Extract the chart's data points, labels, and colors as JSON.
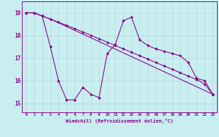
{
  "xlabel": "Windchill (Refroidissement éolien,°C)",
  "bg_color": "#c8eef0",
  "grid_color": "#b0d8dc",
  "line_color": "#880088",
  "xlim": [
    -0.5,
    23.5
  ],
  "ylim": [
    14.6,
    19.5
  ],
  "xticks": [
    0,
    1,
    2,
    3,
    4,
    5,
    6,
    7,
    8,
    9,
    10,
    11,
    12,
    13,
    14,
    15,
    16,
    17,
    18,
    19,
    20,
    21,
    22,
    23
  ],
  "yticks": [
    15,
    16,
    17,
    18,
    19
  ],
  "line1_x": [
    0,
    1,
    2,
    3,
    4,
    5,
    6,
    7,
    8,
    9,
    10,
    11,
    12,
    13,
    14,
    15,
    16,
    17,
    18,
    19,
    20,
    21,
    22,
    23
  ],
  "line1_y": [
    19.0,
    19.0,
    18.85,
    17.5,
    16.0,
    15.15,
    15.15,
    15.7,
    15.4,
    15.25,
    17.2,
    17.6,
    18.65,
    18.8,
    17.8,
    17.55,
    17.4,
    17.3,
    17.2,
    17.1,
    16.8,
    16.1,
    16.0,
    15.4
  ],
  "line2_x": [
    0,
    1,
    2,
    3,
    23
  ],
  "line2_y": [
    19.0,
    19.0,
    18.85,
    18.72,
    15.4
  ],
  "line3_x": [
    0,
    1,
    2,
    3,
    4,
    5,
    6,
    7,
    8,
    9,
    10,
    11,
    12,
    13,
    14,
    15,
    16,
    17,
    18,
    19,
    20,
    21,
    22,
    23
  ],
  "line3_y": [
    19.0,
    19.0,
    18.85,
    18.72,
    18.58,
    18.44,
    18.3,
    18.15,
    18.0,
    17.85,
    17.7,
    17.55,
    17.4,
    17.25,
    17.1,
    16.95,
    16.8,
    16.65,
    16.5,
    16.35,
    16.2,
    16.05,
    15.85,
    15.4
  ]
}
